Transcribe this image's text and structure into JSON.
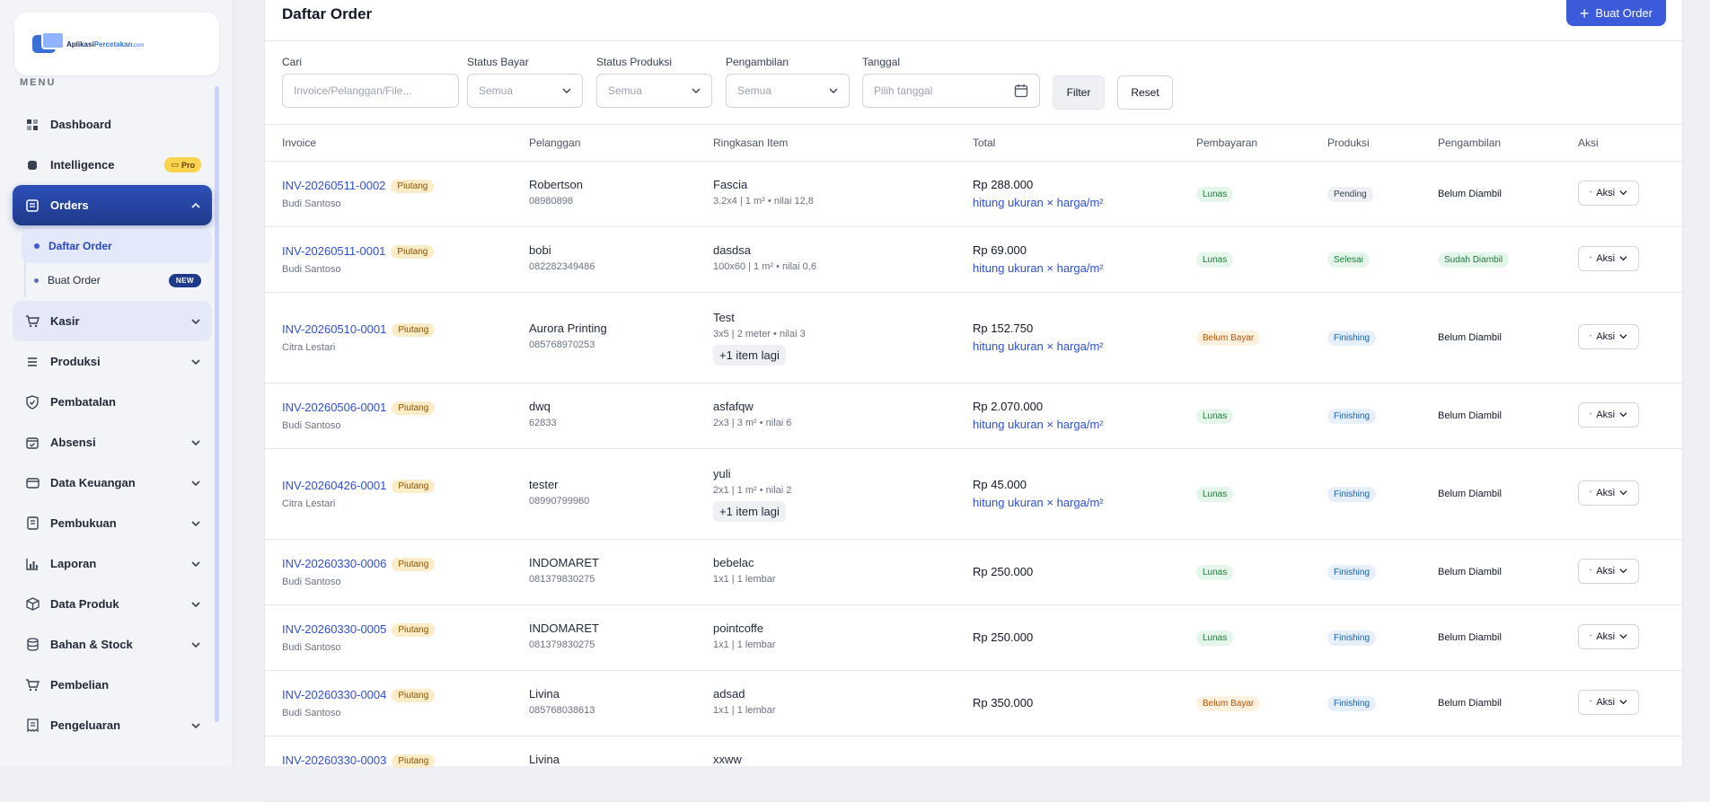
{
  "brand": {
    "name_part1": "Aplikasi",
    "name_part2": "Percetakan",
    "domain": ".com"
  },
  "sidebar": {
    "menu_label": "MENU",
    "items": [
      {
        "label": "Dashboard",
        "icon": "dashboard-icon"
      },
      {
        "label": "Intelligence",
        "icon": "chip-icon",
        "badge": "Pro"
      },
      {
        "label": "Orders",
        "icon": "list-icon"
      },
      {
        "label": "Kasir",
        "icon": "cart-icon"
      },
      {
        "label": "Produksi",
        "icon": "list-icon"
      },
      {
        "label": "Pembatalan",
        "icon": "shield-icon"
      },
      {
        "label": "Absensi",
        "icon": "calendar-check-icon"
      },
      {
        "label": "Data Keuangan",
        "icon": "wallet-icon"
      },
      {
        "label": "Pembukuan",
        "icon": "book-icon"
      },
      {
        "label": "Laporan",
        "icon": "bar-chart-icon"
      },
      {
        "label": "Data Produk",
        "icon": "box-icon"
      },
      {
        "label": "Bahan & Stock",
        "icon": "database-icon"
      },
      {
        "label": "Pembelian",
        "icon": "cart-icon"
      },
      {
        "label": "Pengeluaran",
        "icon": "receipt-icon"
      }
    ],
    "orders_sub": [
      {
        "label": "Daftar Order"
      },
      {
        "label": "Buat Order",
        "badge": "NEW"
      }
    ]
  },
  "header": {
    "title": "Daftar Order",
    "create_button": "Buat Order"
  },
  "filters": {
    "search": {
      "label": "Cari",
      "placeholder": "Invoice/Pelanggan/File..."
    },
    "status_bayar": {
      "label": "Status Bayar",
      "value": "Semua"
    },
    "status_produksi": {
      "label": "Status Produksi",
      "value": "Semua"
    },
    "pengambilan": {
      "label": "Pengambilan",
      "value": "Semua"
    },
    "tanggal": {
      "label": "Tanggal",
      "placeholder": "Pilih tanggal"
    },
    "filter_button": "Filter",
    "reset_button": "Reset"
  },
  "table": {
    "columns": [
      "Invoice",
      "Pelanggan",
      "Ringkasan Item",
      "Total",
      "Pembayaran",
      "Produksi",
      "Pengambilan",
      "Aksi"
    ],
    "piutang_label": "Piutang",
    "aksi_label": "Aksi",
    "rows": [
      {
        "invoice": "INV-20260511-0002",
        "staff": "Budi Santoso",
        "customer": "Robertson",
        "phone": "08980898",
        "item": "Fascia",
        "item_detail": "3.2x4 | 1 m² • nilai 12,8",
        "more": "",
        "total": "Rp 288.000",
        "total_note": "hitung ukuran × harga/m²",
        "payment": "Lunas",
        "production": "Pending",
        "pickup": "Belum Diambil"
      },
      {
        "invoice": "INV-20260511-0001",
        "staff": "Budi Santoso",
        "customer": "bobi",
        "phone": "082282349486",
        "item": "dasdsa",
        "item_detail": "100x60 | 1 m² • nilai 0,6",
        "more": "",
        "total": "Rp 69.000",
        "total_note": "hitung ukuran × harga/m²",
        "payment": "Lunas",
        "production": "Selesai",
        "pickup": "Sudah Diambil"
      },
      {
        "invoice": "INV-20260510-0001",
        "staff": "Citra Lestari",
        "customer": "Aurora Printing",
        "phone": "085768970253",
        "item": "Test",
        "item_detail": "3x5 | 2 meter • nilai 3",
        "more": "+1 item lagi",
        "total": "Rp 152.750",
        "total_note": "hitung ukuran × harga/m²",
        "payment": "Belum Bayar",
        "production": "Finishing",
        "pickup": "Belum Diambil"
      },
      {
        "invoice": "INV-20260506-0001",
        "staff": "Budi Santoso",
        "customer": "dwq",
        "phone": "62833",
        "item": "asfafqw",
        "item_detail": "2x3 | 3 m² • nilai 6",
        "more": "",
        "total": "Rp 2.070.000",
        "total_note": "hitung ukuran × harga/m²",
        "payment": "Lunas",
        "production": "Finishing",
        "pickup": "Belum Diambil"
      },
      {
        "invoice": "INV-20260426-0001",
        "staff": "Citra Lestari",
        "customer": "tester",
        "phone": "08990799960",
        "item": "yuli",
        "item_detail": "2x1 | 1 m² • nilai 2",
        "more": "+1 item lagi",
        "total": "Rp 45.000",
        "total_note": "hitung ukuran × harga/m²",
        "payment": "Lunas",
        "production": "Finishing",
        "pickup": "Belum Diambil"
      },
      {
        "invoice": "INV-20260330-0006",
        "staff": "Budi Santoso",
        "customer": "INDOMARET",
        "phone": "081379830275",
        "item": "bebelac",
        "item_detail": "1x1 | 1 lembar",
        "more": "",
        "total": "Rp 250.000",
        "total_note": "",
        "payment": "Lunas",
        "production": "Finishing",
        "pickup": "Belum Diambil"
      },
      {
        "invoice": "INV-20260330-0005",
        "staff": "Budi Santoso",
        "customer": "INDOMARET",
        "phone": "081379830275",
        "item": "pointcoffe",
        "item_detail": "1x1 | 1 lembar",
        "more": "",
        "total": "Rp 250.000",
        "total_note": "",
        "payment": "Lunas",
        "production": "Finishing",
        "pickup": "Belum Diambil"
      },
      {
        "invoice": "INV-20260330-0004",
        "staff": "Budi Santoso",
        "customer": "Livina",
        "phone": "085768038613",
        "item": "adsad",
        "item_detail": "1x1 | 1 lembar",
        "more": "",
        "total": "Rp 350.000",
        "total_note": "",
        "payment": "Belum Bayar",
        "production": "Finishing",
        "pickup": "Belum Diambil"
      },
      {
        "invoice": "INV-20260330-0003",
        "staff": "",
        "customer": "Livina",
        "phone": "",
        "item": "xxww",
        "item_detail": "",
        "more": "",
        "total": "",
        "total_note": "",
        "payment": "",
        "production": "",
        "pickup": ""
      }
    ]
  }
}
